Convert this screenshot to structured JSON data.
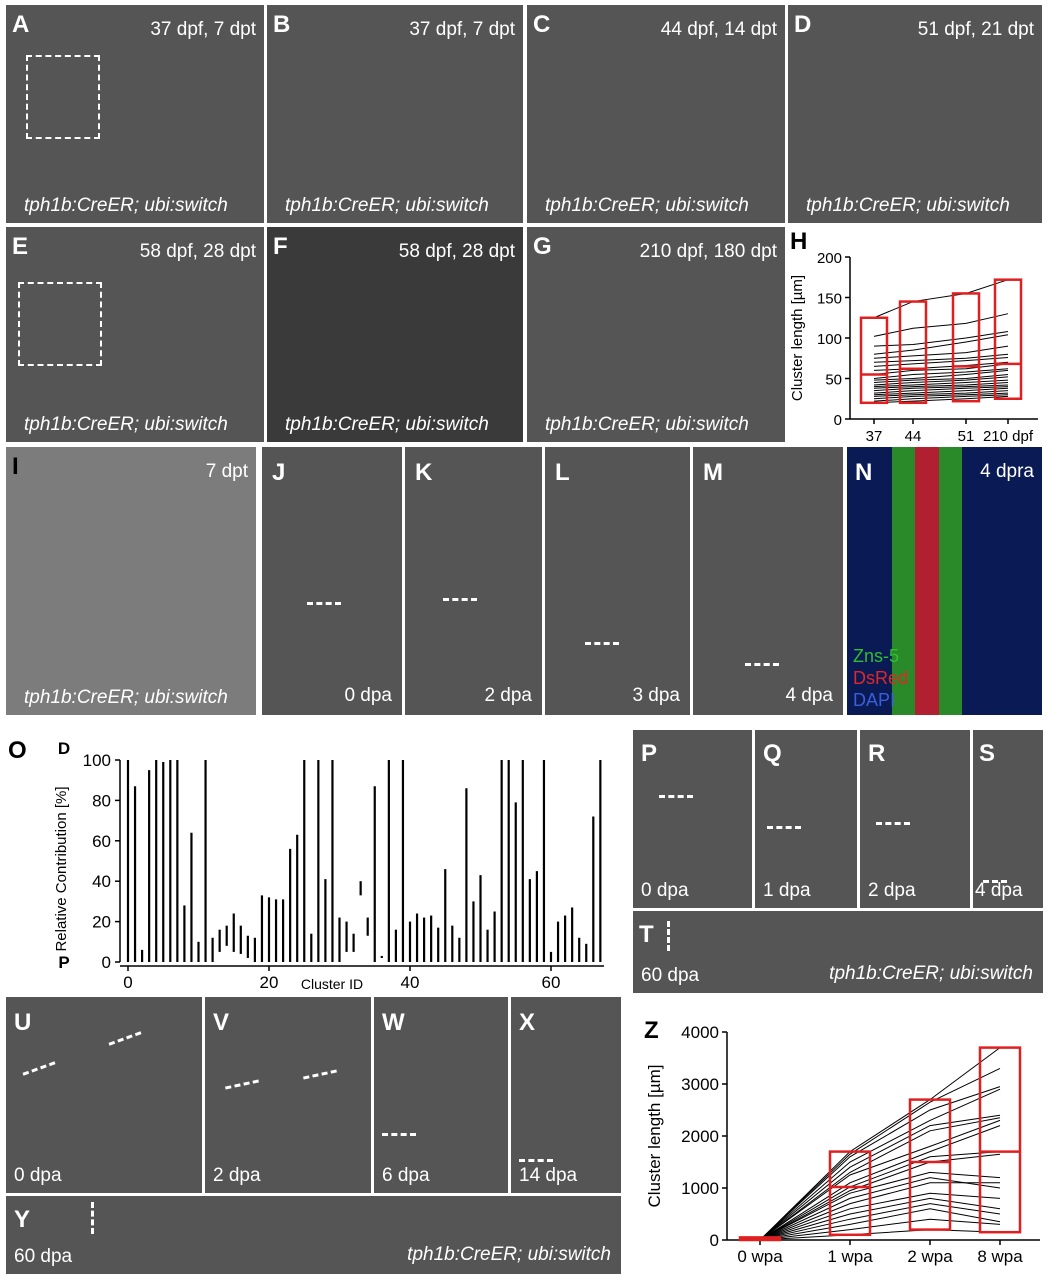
{
  "panels": {
    "A": {
      "letter": "A",
      "top": "37 dpf, 7 dpt",
      "bottom": "tph1b:CreER; ubi:switch"
    },
    "B": {
      "letter": "B",
      "top": "37 dpf, 7 dpt",
      "bottom": "tph1b:CreER; ubi:switch"
    },
    "C": {
      "letter": "C",
      "top": "44 dpf, 14 dpt",
      "bottom": "tph1b:CreER; ubi:switch"
    },
    "D": {
      "letter": "D",
      "top": "51 dpf, 21 dpt",
      "bottom": "tph1b:CreER; ubi:switch"
    },
    "E": {
      "letter": "E",
      "top": "58 dpf, 28 dpt",
      "bottom": "tph1b:CreER; ubi:switch"
    },
    "F": {
      "letter": "F",
      "top": "58 dpf, 28 dpt",
      "bottom": "tph1b:CreER; ubi:switch"
    },
    "G": {
      "letter": "G",
      "top": "210 dpf, 180 dpt",
      "bottom": "tph1b:CreER; ubi:switch"
    },
    "H": {
      "letter": "H"
    },
    "I": {
      "letter": "I",
      "top": "7 dpt",
      "bottom": "tph1b:CreER; ubi:switch"
    },
    "J": {
      "letter": "J",
      "bottom": "0 dpa"
    },
    "K": {
      "letter": "K",
      "bottom": "2 dpa"
    },
    "L": {
      "letter": "L",
      "bottom": "3 dpa"
    },
    "M": {
      "letter": "M",
      "bottom": "4 dpa"
    },
    "N": {
      "letter": "N",
      "top": "4 dpra",
      "legend1": "Zns-5",
      "legend2": "DsRed",
      "legend3": "DAPI"
    },
    "O": {
      "letter": "O"
    },
    "P": {
      "letter": "P",
      "bottom": "0 dpa"
    },
    "Q": {
      "letter": "Q",
      "bottom": "1 dpa"
    },
    "R": {
      "letter": "R",
      "bottom": "2 dpa"
    },
    "S": {
      "letter": "S",
      "bottom": "4 dpa"
    },
    "T": {
      "letter": "T",
      "bottom": "60 dpa",
      "bottom_right": "tph1b:CreER; ubi:switch"
    },
    "U": {
      "letter": "U",
      "bottom": "0 dpa"
    },
    "V": {
      "letter": "V",
      "bottom": "2 dpa"
    },
    "W": {
      "letter": "W",
      "bottom": "6 dpa"
    },
    "X": {
      "letter": "X",
      "bottom": "14 dpa"
    },
    "Y": {
      "letter": "Y",
      "bottom": "60 dpa",
      "bottom_right": "tph1b:CreER; ubi:switch"
    },
    "Z": {
      "letter": "Z"
    }
  },
  "colors": {
    "box": "#e02020",
    "line": "#000000",
    "zns": "#2fbf2f",
    "dsred": "#e02828",
    "dapi": "#3a5fd8"
  },
  "chart_data": [
    {
      "id": "H",
      "type": "line",
      "ylabel": "Cluster length [µm]",
      "ylim": [
        0,
        200
      ],
      "yticks": [
        "0",
        "50",
        "100",
        "150",
        "200"
      ],
      "categories": [
        "37",
        "44",
        "51",
        "210 dpf"
      ],
      "box_ranges": [
        [
          20,
          125
        ],
        [
          20,
          145
        ],
        [
          22,
          155
        ],
        [
          25,
          172
        ]
      ],
      "box_medians": [
        55,
        62,
        65,
        68
      ],
      "series": [
        [
          125,
          145,
          155,
          172
        ],
        [
          102,
          112,
          118,
          130
        ],
        [
          90,
          92,
          100,
          108
        ],
        [
          80,
          85,
          95,
          104
        ],
        [
          75,
          78,
          82,
          90
        ],
        [
          70,
          72,
          75,
          80
        ],
        [
          65,
          68,
          72,
          76
        ],
        [
          60,
          62,
          66,
          70
        ],
        [
          55,
          60,
          62,
          68
        ],
        [
          50,
          55,
          58,
          62
        ],
        [
          48,
          50,
          55,
          60
        ],
        [
          45,
          48,
          50,
          55
        ],
        [
          42,
          45,
          48,
          52
        ],
        [
          40,
          42,
          45,
          48
        ],
        [
          38,
          40,
          42,
          45
        ],
        [
          35,
          38,
          40,
          42
        ],
        [
          32,
          35,
          38,
          40
        ],
        [
          30,
          32,
          35,
          38
        ],
        [
          28,
          30,
          32,
          35
        ],
        [
          25,
          28,
          30,
          32
        ],
        [
          22,
          25,
          28,
          30
        ],
        [
          20,
          22,
          25,
          28
        ]
      ]
    },
    {
      "id": "O",
      "type": "bar",
      "ylabel": "Relative Contribution [%]",
      "xlabel": "Cluster ID",
      "ylim": [
        0,
        100
      ],
      "yticks": [
        "0",
        "20",
        "40",
        "60",
        "80",
        "100"
      ],
      "xticks": [
        "0",
        "20",
        "40",
        "60"
      ],
      "top_label": "D",
      "bottom_label": "P",
      "ranges": [
        [
          0,
          100
        ],
        [
          0,
          87
        ],
        [
          0,
          6
        ],
        [
          0,
          95
        ],
        [
          0,
          100
        ],
        [
          0,
          99
        ],
        [
          0,
          100
        ],
        [
          0,
          100
        ],
        [
          0,
          28
        ],
        [
          0,
          64
        ],
        [
          0,
          10
        ],
        [
          0,
          100
        ],
        [
          0,
          12
        ],
        [
          5,
          16
        ],
        [
          8,
          18
        ],
        [
          5,
          24
        ],
        [
          4,
          18
        ],
        [
          2,
          13
        ],
        [
          0,
          12
        ],
        [
          0,
          33
        ],
        [
          0,
          32
        ],
        [
          0,
          31
        ],
        [
          0,
          31
        ],
        [
          0,
          56
        ],
        [
          0,
          63
        ],
        [
          0,
          100
        ],
        [
          0,
          14
        ],
        [
          0,
          100
        ],
        [
          0,
          41
        ],
        [
          0,
          100
        ],
        [
          0,
          22
        ],
        [
          5,
          20
        ],
        [
          5,
          14
        ],
        [
          33,
          40
        ],
        [
          13,
          22
        ],
        [
          0,
          87
        ],
        [
          2,
          3
        ],
        [
          0,
          100
        ],
        [
          0,
          16
        ],
        [
          0,
          100
        ],
        [
          0,
          20
        ],
        [
          0,
          24
        ],
        [
          0,
          22
        ],
        [
          0,
          23
        ],
        [
          0,
          17
        ],
        [
          0,
          46
        ],
        [
          0,
          18
        ],
        [
          0,
          12
        ],
        [
          0,
          86
        ],
        [
          0,
          30
        ],
        [
          0,
          43
        ],
        [
          0,
          16
        ],
        [
          0,
          25
        ],
        [
          0,
          100
        ],
        [
          0,
          100
        ],
        [
          0,
          79
        ],
        [
          0,
          100
        ],
        [
          0,
          41
        ],
        [
          0,
          45
        ],
        [
          0,
          100
        ],
        [
          0,
          5
        ],
        [
          0,
          20
        ],
        [
          0,
          23
        ],
        [
          0,
          27
        ],
        [
          0,
          12
        ],
        [
          0,
          9
        ],
        [
          0,
          72
        ],
        [
          0,
          100
        ]
      ]
    },
    {
      "id": "Z",
      "type": "line",
      "ylabel": "Cluster length [µm]",
      "ylim": [
        0,
        4000
      ],
      "yticks": [
        "0",
        "1000",
        "2000",
        "3000",
        "4000"
      ],
      "categories": [
        "0 wpa",
        "1 wpa",
        "2 wpa",
        "8 wpa"
      ],
      "box_ranges": [
        [
          0,
          50
        ],
        [
          100,
          1700
        ],
        [
          200,
          2700
        ],
        [
          150,
          3700
        ]
      ],
      "box_medians": [
        20,
        1020,
        1500,
        1700
      ],
      "series": [
        [
          0,
          1700,
          2700,
          3700
        ],
        [
          0,
          1650,
          2650,
          3300
        ],
        [
          0,
          1600,
          2500,
          2950
        ],
        [
          0,
          1500,
          2300,
          2900
        ],
        [
          0,
          1400,
          2200,
          2400
        ],
        [
          0,
          1300,
          2100,
          2350
        ],
        [
          0,
          1250,
          1800,
          2300
        ],
        [
          0,
          1100,
          1700,
          2200
        ],
        [
          0,
          1020,
          1600,
          1700
        ],
        [
          0,
          950,
          1500,
          1650
        ],
        [
          0,
          900,
          1300,
          1200
        ],
        [
          0,
          800,
          1200,
          1000
        ],
        [
          0,
          700,
          1100,
          1100
        ],
        [
          0,
          600,
          900,
          800
        ],
        [
          0,
          500,
          800,
          600
        ],
        [
          0,
          400,
          700,
          500
        ],
        [
          0,
          300,
          600,
          350
        ],
        [
          0,
          200,
          400,
          300
        ],
        [
          0,
          100,
          200,
          150
        ]
      ]
    }
  ]
}
